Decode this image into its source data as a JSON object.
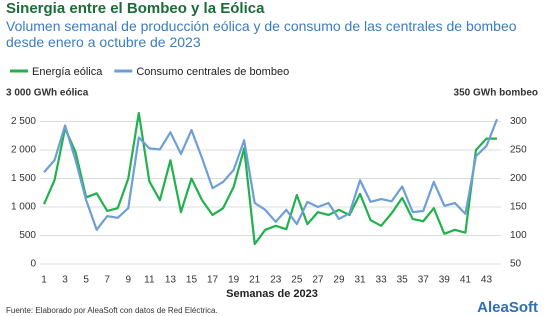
{
  "chart_data": {
    "type": "line",
    "title": "Sinergia entre el Bombeo y la Eólica",
    "subtitle": "Volumen semanal de producción eólica y de consumo de las centrales de bombeo desde enero a octubre de 2023",
    "x_label": "Semanas de 2023",
    "source": "Fuente: Elaborado por AleaSoft con datos de Red Eléctrica.",
    "logo": "AleaSoft",
    "x": [
      1,
      2,
      3,
      4,
      5,
      6,
      7,
      8,
      9,
      10,
      11,
      12,
      13,
      14,
      15,
      16,
      17,
      18,
      19,
      20,
      21,
      22,
      23,
      24,
      25,
      26,
      27,
      28,
      29,
      30,
      31,
      32,
      33,
      34,
      35,
      36,
      37,
      38,
      39,
      40,
      41,
      42,
      43,
      44
    ],
    "xlim": [
      1,
      44
    ],
    "xticks": [
      1,
      3,
      5,
      7,
      9,
      11,
      13,
      15,
      17,
      19,
      21,
      23,
      25,
      27,
      29,
      31,
      33,
      35,
      37,
      39,
      41,
      43
    ],
    "ylim": [
      0,
      3000
    ],
    "yticks": [
      0,
      500,
      {
        "value": 1000,
        "label": "1 000"
      },
      {
        "value": 1500,
        "label": "1 500"
      },
      {
        "value": 2000,
        "label": "2 000"
      },
      {
        "value": 2500,
        "label": "2 500"
      },
      {
        "value": 3000,
        "label": "3 000 GWh eólica"
      }
    ],
    "y2lim": [
      50,
      350
    ],
    "y2ticks": [
      50,
      100,
      150,
      200,
      250,
      300,
      {
        "value": 350,
        "label": "350 GWh bombeo"
      }
    ],
    "grid": true,
    "series": [
      {
        "name": "Energía eólica",
        "color": "#22b14c",
        "values": [
          1050,
          1470,
          2380,
          1960,
          1170,
          1240,
          930,
          980,
          1500,
          2650,
          1450,
          1120,
          1820,
          910,
          1500,
          1120,
          860,
          980,
          1350,
          2030,
          350,
          600,
          670,
          610,
          1210,
          700,
          910,
          860,
          950,
          860,
          1230,
          770,
          670,
          890,
          1160,
          790,
          750,
          980,
          530,
          600,
          550,
          2000,
          2200,
          2200
        ]
      },
      {
        "name": "Consumo centrales de bombeo",
        "color": "#6d9fd6",
        "axis": "y2",
        "values": [
          211,
          232,
          293,
          232,
          162,
          110,
          134,
          131,
          148,
          272,
          253,
          251,
          281,
          243,
          285,
          236,
          183,
          194,
          215,
          267,
          157,
          145,
          124,
          145,
          120,
          159,
          150,
          157,
          129,
          139,
          197,
          159,
          164,
          160,
          186,
          141,
          143,
          194,
          152,
          157,
          138,
          239,
          257,
          304
        ]
      }
    ]
  }
}
